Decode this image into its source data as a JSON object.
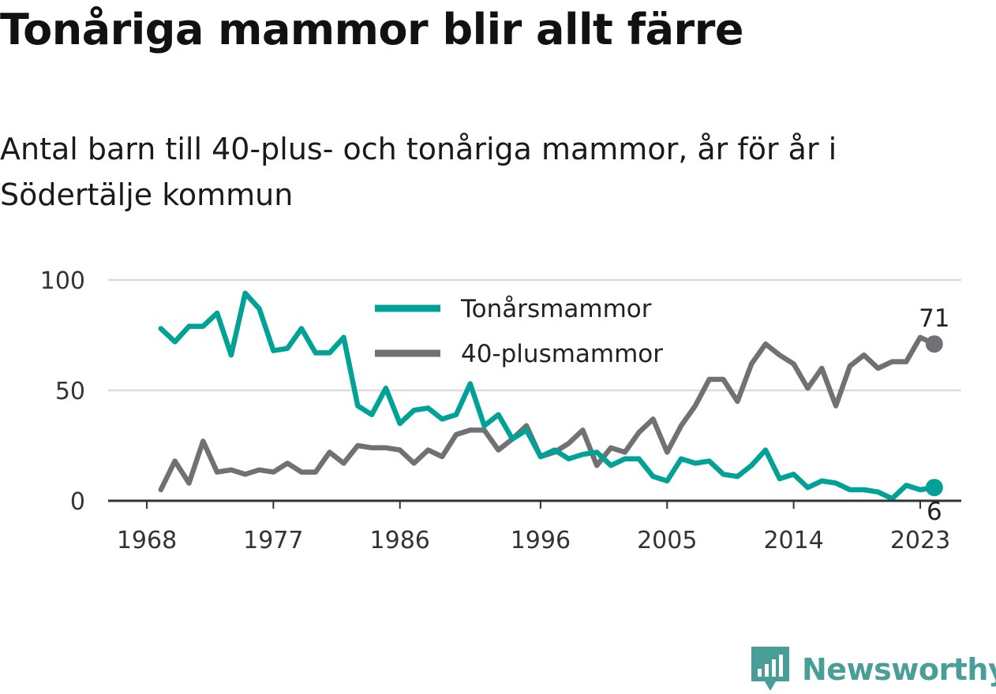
{
  "header": {
    "title": "Tonåriga mammor blir allt färre",
    "subtitle": "Antal barn till 40-plus- och tonåriga mammor, år för år i Södertälje kommun"
  },
  "brand": {
    "name": "Newsworthy",
    "icon": "newsworthy-logo-icon",
    "color": "#4a9e98"
  },
  "chart_data": {
    "type": "line",
    "title": "Tonåriga mammor blir allt färre",
    "subtitle": "Antal barn till 40-plus- och tonåriga mammor, år för år i Södertälje kommun",
    "xlabel": "",
    "ylabel": "",
    "xlim": [
      1968,
      2024
    ],
    "ylim": [
      0,
      100
    ],
    "x_ticks": [
      "1968",
      "1977",
      "1986",
      "1996",
      "2005",
      "2014",
      "2023"
    ],
    "y_ticks": [
      "0",
      "50",
      "100"
    ],
    "grid": true,
    "legend_position": "top-center",
    "x": [
      1969,
      1970,
      1971,
      1972,
      1973,
      1974,
      1975,
      1976,
      1977,
      1978,
      1979,
      1980,
      1981,
      1982,
      1983,
      1984,
      1985,
      1986,
      1987,
      1988,
      1989,
      1990,
      1991,
      1992,
      1993,
      1994,
      1995,
      1996,
      1997,
      1998,
      1999,
      2000,
      2001,
      2002,
      2003,
      2004,
      2005,
      2006,
      2007,
      2008,
      2009,
      2010,
      2011,
      2012,
      2013,
      2014,
      2015,
      2016,
      2017,
      2018,
      2019,
      2020,
      2021,
      2022,
      2023,
      2024
    ],
    "series": [
      {
        "name": "Tonårsmammor",
        "color": "#00a298",
        "values": [
          78,
          72,
          79,
          79,
          85,
          66,
          94,
          87,
          68,
          69,
          78,
          67,
          67,
          74,
          43,
          39,
          51,
          35,
          41,
          42,
          37,
          39,
          53,
          34,
          39,
          28,
          32,
          20,
          23,
          19,
          21,
          22,
          16,
          19,
          19,
          11,
          9,
          19,
          17,
          18,
          12,
          11,
          16,
          23,
          10,
          12,
          6,
          9,
          8,
          5,
          5,
          4,
          1,
          7,
          5,
          6
        ],
        "end_label": "6"
      },
      {
        "name": "40-plusmammor",
        "color": "#707075",
        "values": [
          5,
          18,
          8,
          27,
          13,
          14,
          12,
          14,
          13,
          17,
          13,
          13,
          22,
          17,
          25,
          24,
          24,
          23,
          17,
          23,
          20,
          30,
          32,
          32,
          23,
          28,
          34,
          20,
          22,
          26,
          32,
          16,
          24,
          22,
          31,
          37,
          22,
          34,
          43,
          55,
          55,
          45,
          62,
          71,
          66,
          62,
          51,
          60,
          43,
          61,
          66,
          60,
          63,
          63,
          74,
          71
        ],
        "end_label": "71"
      }
    ]
  }
}
